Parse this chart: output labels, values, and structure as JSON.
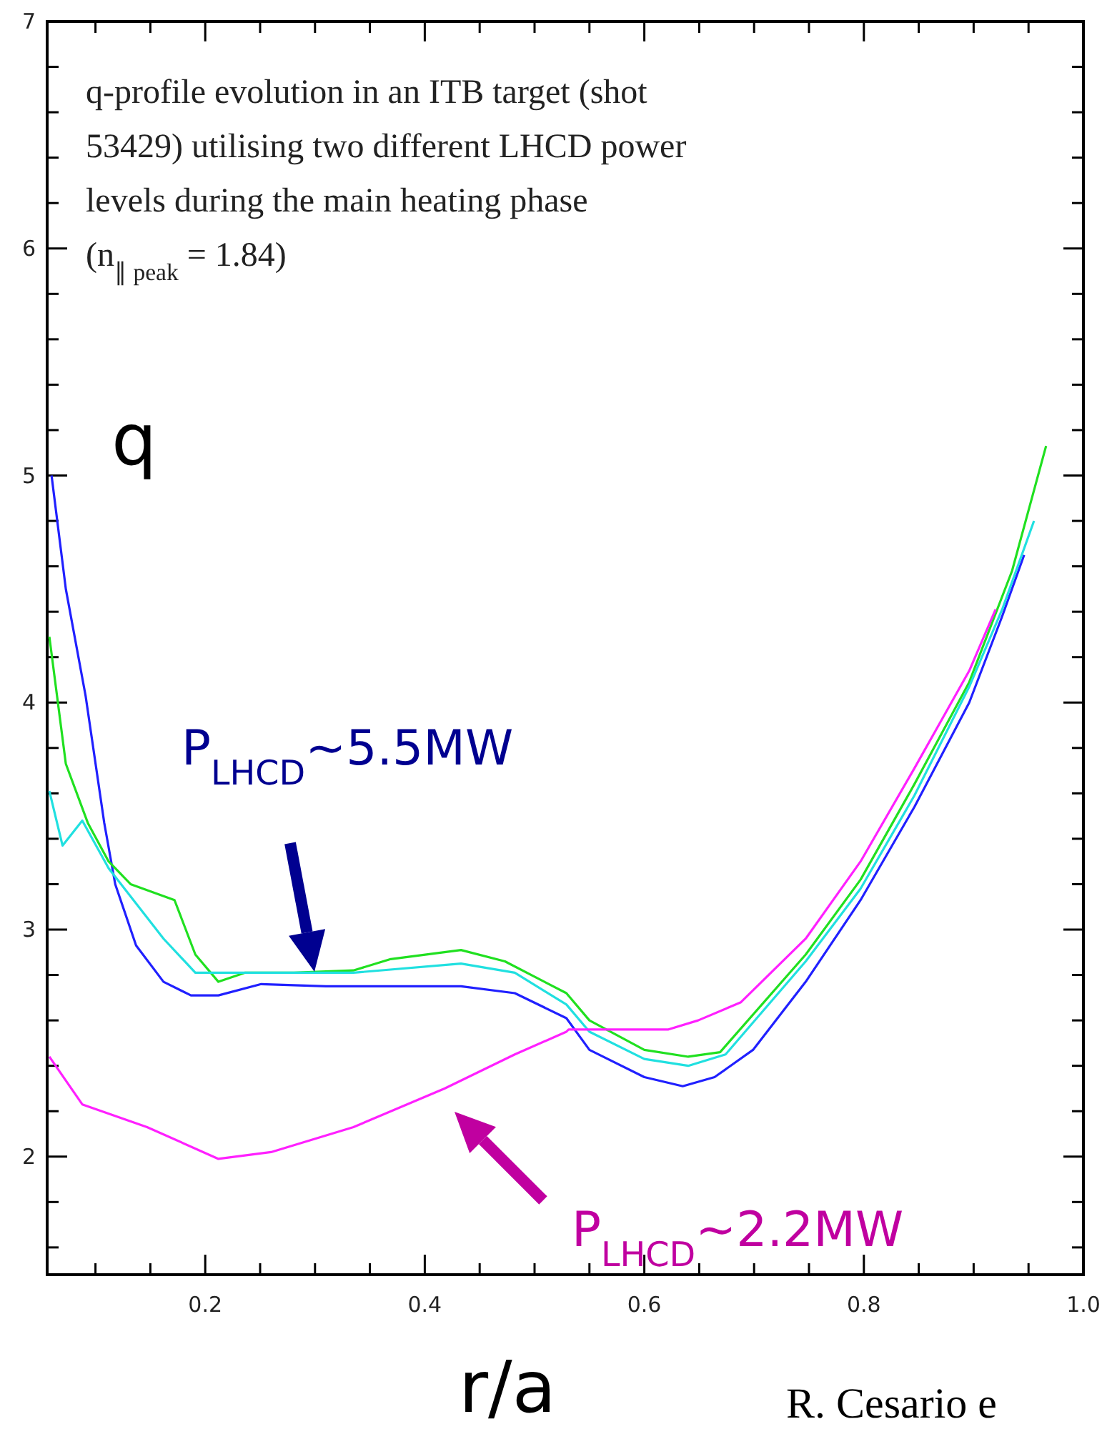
{
  "chart_data": {
    "type": "line",
    "xlabel": "r/a",
    "ylabel": "q",
    "annotations": [
      "q-profile evolution in an ITB target (shot 53429) utilising two different LHCD power levels during the main heating phase (n$_{∥ peak}$ = 1.84)",
      "P$_{LHCD}$~5.5MW",
      "P$_{LHCD}$~2.2MW",
      "R. Cesario e"
    ],
    "xlim": [
      0.056,
      1.0
    ],
    "ylim": [
      1.48,
      7
    ],
    "xticks": [
      {
        "value": 0.1,
        "label": null
      },
      {
        "value": 0.15,
        "label": null
      },
      {
        "value": 0.2,
        "label": "0.2"
      },
      {
        "value": 0.25,
        "label": null
      },
      {
        "value": 0.3,
        "label": null
      },
      {
        "value": 0.35,
        "label": null
      },
      {
        "value": 0.4,
        "label": "0.4"
      },
      {
        "value": 0.45,
        "label": null
      },
      {
        "value": 0.5,
        "label": null
      },
      {
        "value": 0.55,
        "label": null
      },
      {
        "value": 0.6,
        "label": "0.6"
      },
      {
        "value": 0.65,
        "label": null
      },
      {
        "value": 0.7,
        "label": null
      },
      {
        "value": 0.75,
        "label": null
      },
      {
        "value": 0.8,
        "label": "0.8"
      },
      {
        "value": 0.85,
        "label": null
      },
      {
        "value": 0.9,
        "label": null
      },
      {
        "value": 0.95,
        "label": null
      },
      {
        "value": 1.0,
        "label": "1.0"
      }
    ],
    "yticks": [
      {
        "value": 1.6,
        "label": null
      },
      {
        "value": 1.8,
        "label": null
      },
      2,
      {
        "value": 2.2,
        "label": null
      },
      {
        "value": 2.4,
        "label": null
      },
      {
        "value": 2.6,
        "label": null
      },
      {
        "value": 2.8,
        "label": null
      },
      3,
      {
        "value": 3.2,
        "label": null
      },
      {
        "value": 3.4,
        "label": null
      },
      {
        "value": 3.6,
        "label": null
      },
      {
        "value": 3.8,
        "label": null
      },
      4,
      {
        "value": 4.2,
        "label": null
      },
      {
        "value": 4.4,
        "label": null
      },
      {
        "value": 4.6,
        "label": null
      },
      {
        "value": 4.8,
        "label": null
      },
      5,
      {
        "value": 5.2,
        "label": null
      },
      {
        "value": 5.4,
        "label": null
      },
      {
        "value": 5.6,
        "label": null
      },
      {
        "value": 5.8,
        "label": null
      },
      6,
      {
        "value": 6.2,
        "label": null
      },
      {
        "value": 6.4,
        "label": null
      },
      {
        "value": 6.6,
        "label": null
      },
      {
        "value": 6.8,
        "label": null
      },
      7
    ],
    "grid": false,
    "marker": "none",
    "line_style": "solid",
    "series": [
      {
        "color": "#2020ff",
        "x": [
          0.06,
          0.073,
          0.091,
          0.108,
          0.118,
          0.137,
          0.162,
          0.187,
          0.212,
          0.251,
          0.31,
          0.433,
          0.482,
          0.529,
          0.55,
          0.6,
          0.635,
          0.664,
          0.699,
          0.747,
          0.797,
          0.846,
          0.896,
          0.926,
          0.946
        ],
        "values": [
          5.0,
          4.5,
          4.03,
          3.47,
          3.2,
          2.93,
          2.77,
          2.71,
          2.71,
          2.76,
          2.75,
          2.75,
          2.72,
          2.61,
          2.47,
          2.35,
          2.31,
          2.35,
          2.47,
          2.77,
          3.13,
          3.54,
          4.0,
          4.38,
          4.65
        ]
      },
      {
        "color": "#20e020",
        "x": [
          0.058,
          0.073,
          0.093,
          0.112,
          0.132,
          0.172,
          0.191,
          0.212,
          0.236,
          0.281,
          0.335,
          0.369,
          0.433,
          0.473,
          0.529,
          0.55,
          0.6,
          0.64,
          0.669,
          0.747,
          0.797,
          0.846,
          0.896,
          0.935,
          0.966
        ],
        "values": [
          4.29,
          3.73,
          3.47,
          3.3,
          3.2,
          3.13,
          2.89,
          2.77,
          2.81,
          2.81,
          2.82,
          2.87,
          2.91,
          2.86,
          2.72,
          2.6,
          2.47,
          2.44,
          2.46,
          2.89,
          3.22,
          3.64,
          4.09,
          4.58,
          5.13
        ]
      },
      {
        "color": "#20e0e0",
        "x": [
          0.058,
          0.07,
          0.088,
          0.112,
          0.162,
          0.191,
          0.236,
          0.335,
          0.433,
          0.482,
          0.529,
          0.55,
          0.6,
          0.64,
          0.674,
          0.747,
          0.797,
          0.846,
          0.896,
          0.926,
          0.955
        ],
        "values": [
          3.61,
          3.37,
          3.48,
          3.27,
          2.96,
          2.81,
          2.81,
          2.81,
          2.85,
          2.81,
          2.67,
          2.55,
          2.43,
          2.4,
          2.45,
          2.86,
          3.18,
          3.59,
          4.07,
          4.41,
          4.8
        ]
      },
      {
        "color": "#ff20ff",
        "x": [
          0.058,
          0.088,
          0.147,
          0.212,
          0.26,
          0.335,
          0.418,
          0.482,
          0.529,
          0.531,
          0.622,
          0.649,
          0.688,
          0.747,
          0.797,
          0.846,
          0.896,
          0.92
        ],
        "values": [
          2.44,
          2.23,
          2.13,
          1.99,
          2.02,
          2.13,
          2.3,
          2.45,
          2.55,
          2.56,
          2.56,
          2.6,
          2.68,
          2.96,
          3.3,
          3.71,
          4.14,
          4.41
        ]
      }
    ]
  }
}
